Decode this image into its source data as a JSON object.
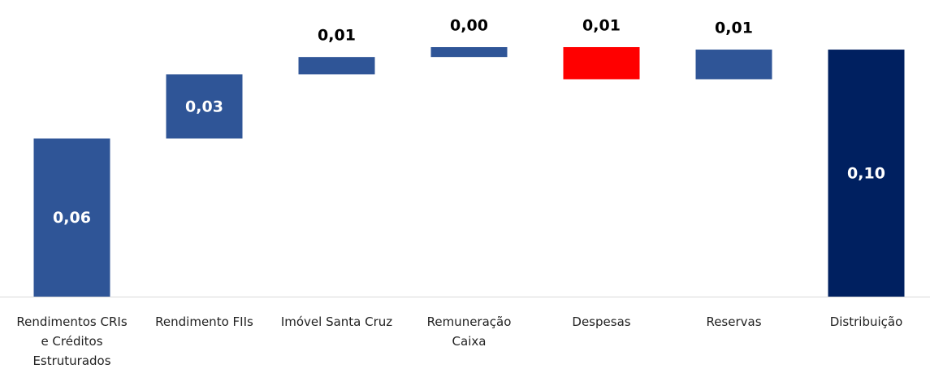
{
  "chart_data": {
    "type": "waterfall",
    "categories": [
      "Rendimentos CRIs e Créditos Estruturados",
      "Rendimento FIIs",
      "Imóvel Santa Cruz",
      "Remuneração Caixa",
      "Despesas",
      "Reservas",
      "Distribuição"
    ],
    "values": [
      0.064,
      0.026,
      0.007,
      0.004,
      -0.013,
      0.012,
      0.1
    ],
    "value_labels": [
      "0,06",
      "0,03",
      "0,01",
      "0,00",
      "0,01",
      "0,01",
      "0,10"
    ],
    "measures": [
      "relative",
      "relative",
      "relative",
      "relative",
      "relative",
      "relative",
      "total"
    ],
    "colors": [
      "#2f5597",
      "#2f5597",
      "#2f5597",
      "#2f5597",
      "#ff0000",
      "#2f5597",
      "#002060"
    ]
  }
}
